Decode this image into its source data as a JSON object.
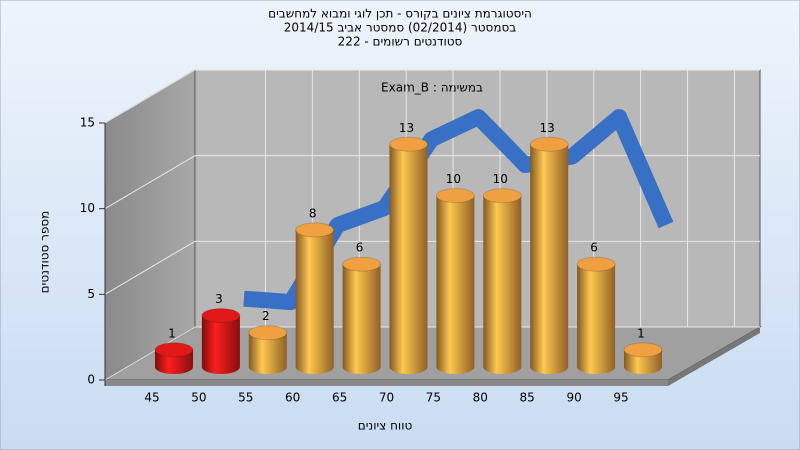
{
  "chart_data": {
    "type": "bar3d",
    "title": [
      "היסטוגרמת ציונים בקורס - תכן לוגי ומבוא למחשבים",
      "בסמסטר  (02/2014)  סמסטר אביב 2014/15",
      "סטודנטים רשומים - 222"
    ],
    "subtitle": "Exam_B : במשימה",
    "x_label": "טווח ציונים",
    "y_label": "מספר סטודנטים",
    "categories": [
      "45",
      "50",
      "55",
      "60",
      "65",
      "70",
      "75",
      "80",
      "85",
      "90",
      "95"
    ],
    "values": [
      1,
      3,
      2,
      8,
      6,
      13,
      10,
      10,
      13,
      6,
      1
    ],
    "colors": [
      "#e01818",
      "#e01818",
      "#f0a040",
      "#f0a040",
      "#f0a040",
      "#f0a040",
      "#f0a040",
      "#f0a040",
      "#f0a040",
      "#f0a040",
      "#f0a040"
    ],
    "trend": {
      "color": "#2f6bc4",
      "values": [
        null,
        3.2,
        3,
        7.5,
        8.5,
        12.5,
        13.8,
        11,
        11.5,
        13.8,
        7.5
      ]
    },
    "ylim": [
      0,
      15
    ],
    "yticks": [
      0,
      5,
      10,
      15
    ],
    "grid": true
  }
}
